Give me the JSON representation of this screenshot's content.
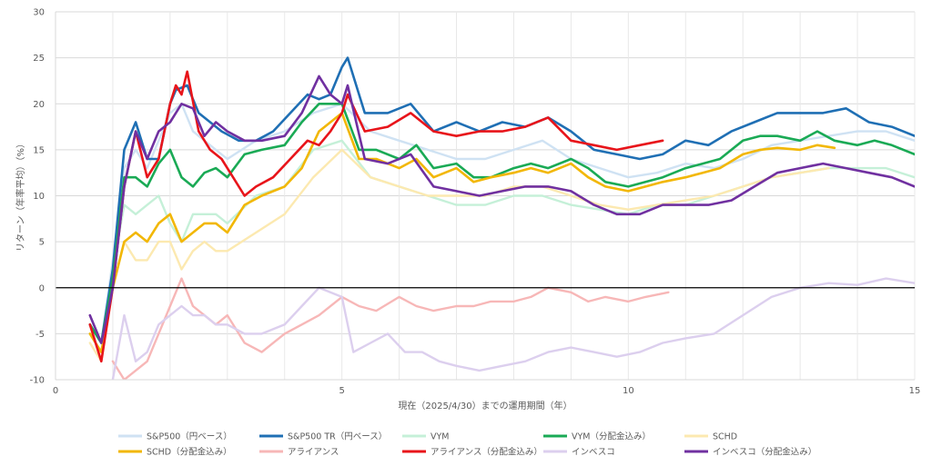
{
  "chart_data": {
    "type": "line",
    "xlabel": "現在（2025/4/30）までの運用期間（年）",
    "ylabel": "リターン（年率平均）（%）",
    "xlim": [
      0,
      15
    ],
    "ylim": [
      -10,
      30
    ],
    "x_ticks": [
      "0",
      "5",
      "10",
      "15"
    ],
    "y_ticks": [
      "-10",
      "-5",
      "0",
      "5",
      "10",
      "15",
      "20",
      "25",
      "30"
    ],
    "grid": true,
    "legend_position": "bottom",
    "series": [
      {
        "name": "S&P500（円ベース）",
        "color": "#cfe2f3",
        "x": [
          0.6,
          0.8,
          1.0,
          1.2,
          1.4,
          1.6,
          1.8,
          2.0,
          2.2,
          2.4,
          2.6,
          2.8,
          3.0,
          3.5,
          4.0,
          4.5,
          5.0,
          5.5,
          6.0,
          6.5,
          7.0,
          7.5,
          8.0,
          8.5,
          9.0,
          9.5,
          10.0,
          10.5,
          11.0,
          11.5,
          12.0,
          12.5,
          13.0,
          13.5,
          14.0,
          14.5,
          15.0
        ],
        "y": [
          -4,
          -6,
          3,
          13,
          15,
          13,
          16,
          19,
          20,
          17,
          16,
          15,
          14,
          16,
          17,
          19,
          20,
          17,
          16,
          15,
          14,
          14,
          15,
          16,
          14,
          13,
          12,
          12.5,
          13.5,
          13,
          14,
          15.5,
          16,
          16.5,
          17,
          17,
          16
        ]
      },
      {
        "name": "S&P500 TR（円ベース）",
        "color": "#1f6fb4",
        "x": [
          0.6,
          0.8,
          1.0,
          1.2,
          1.4,
          1.6,
          1.8,
          2.0,
          2.1,
          2.3,
          2.5,
          2.7,
          2.9,
          3.2,
          3.5,
          3.8,
          4.1,
          4.4,
          4.6,
          4.8,
          5.0,
          5.1,
          5.4,
          5.8,
          6.2,
          6.6,
          7.0,
          7.4,
          7.8,
          8.2,
          8.6,
          9.0,
          9.4,
          9.8,
          10.2,
          10.6,
          11.0,
          11.4,
          11.8,
          12.2,
          12.6,
          13.0,
          13.4,
          13.8,
          14.2,
          14.6,
          15.0
        ],
        "y": [
          -4,
          -6,
          2,
          15,
          18,
          14,
          14,
          20,
          21.5,
          22,
          19,
          18,
          17,
          16,
          16,
          17,
          19,
          21,
          20.5,
          21,
          24,
          25,
          19,
          19,
          20,
          17,
          18,
          17,
          18,
          17.5,
          18.5,
          17,
          15,
          14.5,
          14,
          14.5,
          16,
          15.5,
          17,
          18,
          19,
          19,
          19,
          19.5,
          18,
          17.5,
          16.5
        ]
      },
      {
        "name": "VYM",
        "color": "#c5f0d8",
        "x": [
          0.6,
          0.8,
          1.0,
          1.2,
          1.4,
          1.6,
          1.8,
          2.0,
          2.2,
          2.4,
          2.6,
          2.8,
          3.0,
          3.5,
          4.0,
          4.5,
          5.0,
          5.5,
          6.0,
          6.5,
          7.0,
          7.5,
          8.0,
          8.5,
          9.0,
          9.5,
          10.0,
          10.5,
          11.0,
          11.5,
          12.0,
          12.5,
          13.0,
          13.5,
          14.0,
          14.5,
          15.0
        ],
        "y": [
          -5,
          -7,
          2,
          9,
          8,
          9,
          10,
          7,
          5,
          8,
          8,
          8,
          7,
          10,
          11,
          15,
          16,
          12,
          11,
          10,
          9,
          9,
          10,
          10,
          9,
          8.5,
          8,
          9,
          9,
          10,
          11,
          12,
          12.5,
          13,
          13,
          13,
          12
        ]
      },
      {
        "name": "VYM（分配金込み）",
        "color": "#1aaa55",
        "x": [
          0.6,
          0.8,
          1.0,
          1.2,
          1.4,
          1.6,
          1.8,
          2.0,
          2.2,
          2.4,
          2.6,
          2.8,
          3.0,
          3.3,
          3.6,
          4.0,
          4.3,
          4.6,
          5.0,
          5.3,
          5.6,
          6.0,
          6.3,
          6.6,
          7.0,
          7.3,
          7.6,
          8.0,
          8.3,
          8.6,
          9.0,
          9.3,
          9.6,
          10.0,
          10.3,
          10.6,
          11.0,
          11.3,
          11.6,
          12.0,
          12.3,
          12.6,
          13.0,
          13.3,
          13.6,
          14.0,
          14.3,
          14.6,
          15.0
        ],
        "y": [
          -4,
          -6,
          1,
          12,
          12,
          11,
          13.5,
          15,
          12,
          11,
          12.5,
          13,
          12,
          14.5,
          15,
          15.5,
          18,
          20,
          20,
          15,
          15,
          14,
          15.5,
          13,
          13.5,
          12,
          12,
          13,
          13.5,
          13,
          14,
          13,
          11.5,
          11,
          11.5,
          12,
          13,
          13.5,
          14,
          16,
          16.5,
          16.5,
          16,
          17,
          16,
          15.5,
          16,
          15.5,
          14.5
        ]
      },
      {
        "name": "SCHD",
        "color": "#fce9b0",
        "x": [
          0.6,
          0.8,
          1.0,
          1.2,
          1.4,
          1.6,
          1.8,
          2.0,
          2.2,
          2.4,
          2.6,
          2.8,
          3.0,
          3.5,
          4.0,
          4.5,
          5.0,
          5.5,
          6.0,
          6.5,
          7.0,
          7.5,
          8.0,
          8.5,
          9.0,
          9.5,
          10.0,
          10.5,
          11.0,
          11.5,
          12.0,
          12.5,
          13.0,
          13.5
        ],
        "y": [
          -6,
          -8,
          0,
          5,
          3,
          3,
          5,
          5,
          2,
          4,
          5,
          4,
          4,
          6,
          8,
          12,
          15,
          12,
          11,
          10,
          10,
          10,
          11,
          11,
          10,
          9,
          8.5,
          9,
          9.5,
          10,
          11,
          12,
          12.5,
          13
        ]
      },
      {
        "name": "SCHD（分配金込み）",
        "color": "#f2b705",
        "x": [
          0.6,
          0.8,
          1.0,
          1.2,
          1.4,
          1.6,
          1.8,
          2.0,
          2.2,
          2.4,
          2.6,
          2.8,
          3.0,
          3.3,
          3.6,
          4.0,
          4.3,
          4.6,
          5.0,
          5.3,
          5.6,
          6.0,
          6.3,
          6.6,
          7.0,
          7.3,
          7.6,
          8.0,
          8.3,
          8.6,
          9.0,
          9.3,
          9.6,
          10.0,
          10.3,
          10.6,
          11.0,
          11.3,
          11.6,
          12.0,
          12.3,
          12.6,
          13.0,
          13.3,
          13.6
        ],
        "y": [
          -5,
          -7,
          0,
          5,
          6,
          5,
          7,
          8,
          5,
          6,
          7,
          7,
          6,
          9,
          10,
          11,
          13,
          17,
          19,
          14,
          14,
          13,
          14,
          12,
          13,
          11.5,
          12,
          12.5,
          13,
          12.5,
          13.5,
          12,
          11,
          10.5,
          11,
          11.5,
          12,
          12.5,
          13,
          14.5,
          15,
          15.2,
          15,
          15.5,
          15.2
        ]
      },
      {
        "name": "アライアンス",
        "color": "#f7b7b7",
        "x": [
          1.0,
          1.2,
          1.4,
          1.6,
          1.8,
          2.0,
          2.2,
          2.4,
          2.6,
          2.8,
          3.0,
          3.3,
          3.6,
          4.0,
          4.3,
          4.6,
          5.0,
          5.3,
          5.6,
          6.0,
          6.3,
          6.6,
          7.0,
          7.3,
          7.6,
          8.0,
          8.3,
          8.6,
          9.0,
          9.3,
          9.6,
          10.0,
          10.3,
          10.7
        ],
        "y": [
          -8,
          -10,
          -9,
          -8,
          -5,
          -2,
          1,
          -2,
          -3,
          -4,
          -3,
          -6,
          -7,
          -5,
          -4,
          -3,
          -1,
          -2,
          -2.5,
          -1,
          -2,
          -2.5,
          -2,
          -2,
          -1.5,
          -1.5,
          -1,
          0,
          -0.5,
          -1.5,
          -1,
          -1.5,
          -1,
          -0.5
        ]
      },
      {
        "name": "アライアンス（分配金込み）",
        "color": "#e8141a",
        "x": [
          0.6,
          0.8,
          1.0,
          1.2,
          1.4,
          1.6,
          1.8,
          2.0,
          2.1,
          2.2,
          2.3,
          2.5,
          2.7,
          2.9,
          3.1,
          3.3,
          3.5,
          3.8,
          4.1,
          4.4,
          4.6,
          4.8,
          5.0,
          5.1,
          5.4,
          5.8,
          6.2,
          6.6,
          7.0,
          7.4,
          7.8,
          8.2,
          8.6,
          9.0,
          9.4,
          9.8,
          10.2,
          10.6
        ],
        "y": [
          -4,
          -8,
          0,
          11,
          17,
          12,
          14,
          20,
          22,
          21,
          23.5,
          17,
          15,
          14,
          12,
          10,
          11,
          12,
          14,
          16,
          15.5,
          17,
          19,
          21,
          17,
          17.5,
          19,
          17,
          16.5,
          17,
          17,
          17.5,
          18.5,
          16,
          15.5,
          15,
          15.5,
          16
        ]
      },
      {
        "name": "インベスコ",
        "color": "#dccfee",
        "x": [
          1.0,
          1.2,
          1.4,
          1.6,
          1.8,
          2.0,
          2.2,
          2.4,
          2.6,
          2.8,
          3.0,
          3.3,
          3.6,
          4.0,
          4.3,
          4.6,
          5.0,
          5.2,
          5.5,
          5.8,
          6.1,
          6.4,
          6.7,
          7.0,
          7.4,
          7.8,
          8.2,
          8.6,
          9.0,
          9.4,
          9.8,
          10.2,
          10.6,
          11.0,
          11.5,
          12.0,
          12.5,
          13.0,
          13.5,
          14.0,
          14.5,
          15.0
        ],
        "y": [
          -10,
          -3,
          -8,
          -7,
          -4,
          -3,
          -2,
          -3,
          -3,
          -4,
          -4,
          -5,
          -5,
          -4,
          -2,
          0,
          -1,
          -7,
          -6,
          -5,
          -7,
          -7,
          -8,
          -8.5,
          -9,
          -8.5,
          -8,
          -7,
          -6.5,
          -7,
          -7.5,
          -7,
          -6,
          -5.5,
          -5,
          -3,
          -1,
          0,
          0.5,
          0.3,
          1,
          0.5
        ]
      },
      {
        "name": "インベスコ（分配金込み）",
        "color": "#7030a0",
        "x": [
          0.6,
          0.8,
          1.0,
          1.2,
          1.4,
          1.6,
          1.8,
          2.0,
          2.2,
          2.4,
          2.6,
          2.8,
          3.0,
          3.3,
          3.6,
          4.0,
          4.3,
          4.6,
          4.8,
          5.0,
          5.1,
          5.4,
          5.8,
          6.2,
          6.6,
          7.0,
          7.4,
          7.8,
          8.2,
          8.6,
          9.0,
          9.4,
          9.8,
          10.2,
          10.6,
          11.0,
          11.4,
          11.8,
          12.2,
          12.6,
          13.0,
          13.4,
          13.8,
          14.2,
          14.6,
          15.0
        ],
        "y": [
          -3,
          -6,
          0,
          11,
          17,
          14,
          17,
          18,
          20,
          19.5,
          16.5,
          18,
          17,
          16,
          16,
          16.5,
          19,
          23,
          21,
          20,
          22,
          14,
          13.5,
          14.5,
          11,
          10.5,
          10,
          10.5,
          11,
          11,
          10.5,
          9,
          8,
          8,
          9,
          9,
          9,
          9.5,
          11,
          12.5,
          13,
          13.5,
          13,
          12.5,
          12,
          11
        ]
      }
    ]
  }
}
